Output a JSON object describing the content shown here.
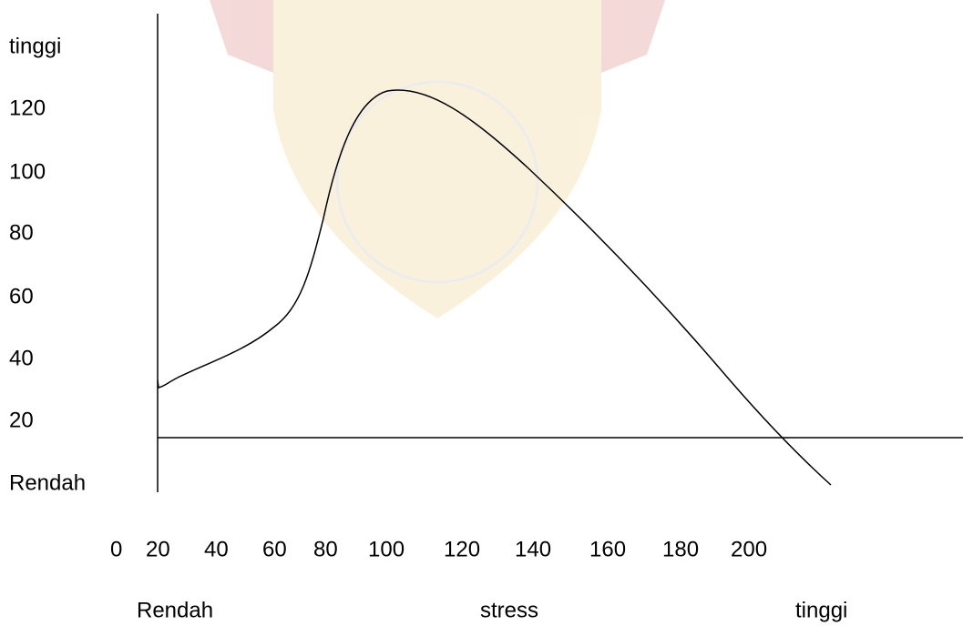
{
  "y_axis": {
    "top_label": "tinggi",
    "ticks": [
      "120",
      "100",
      "80",
      "60",
      "40",
      "20"
    ],
    "bottom_label": "Rendah"
  },
  "x_axis": {
    "ticks": [
      "0",
      "20",
      "40",
      "60",
      "80",
      "100",
      "120",
      "140",
      "160",
      "180",
      "200"
    ],
    "labels": [
      "Rendah",
      "stress",
      "tinggi"
    ]
  }
}
